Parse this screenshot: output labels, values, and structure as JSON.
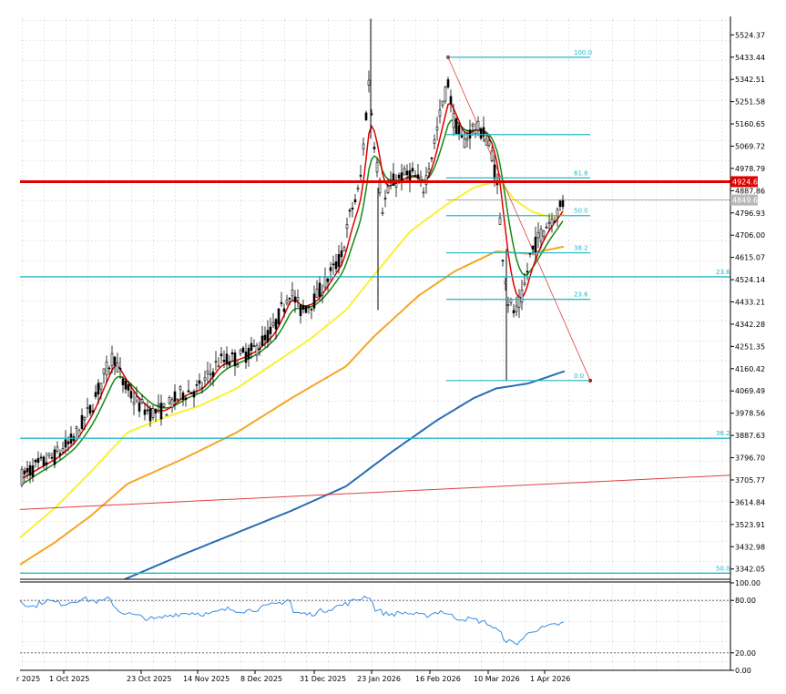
{
  "chart_data": {
    "type": "candlestick",
    "price_axis": {
      "ticks": [
        "5524.37",
        "5433.44",
        "5342.51",
        "5251.58",
        "5160.65",
        "5069.72",
        "4978.79",
        "4887.86",
        "4796.93",
        "4706.00",
        "4615.07",
        "4524.14",
        "4433.21",
        "4342.28",
        "4251.35",
        "4160.42",
        "4069.49",
        "3978.56",
        "3887.63",
        "3796.70",
        "3705.77",
        "3614.84",
        "3523.91",
        "3432.98",
        "3342.05"
      ],
      "range": [
        3300,
        5600
      ]
    },
    "date_axis": {
      "ticks": [
        "1 Oct 2025",
        "23 Oct 2025",
        "14 Nov 2025",
        "8 Dec 2025",
        "31 Dec 2025",
        "23 Jan 2026",
        "16 Feb 2026",
        "10 Mar 2026",
        "1 Apr 2026"
      ],
      "first_label_partial": "r 2025"
    },
    "price_tags": {
      "resistance": "4924.64",
      "current": "4849.61"
    },
    "resistance_level": 4924.64,
    "current_price": 4849.61,
    "fib_levels": [
      {
        "label": "100.0",
        "price": 5433
      },
      {
        "label": "61.8",
        "price": 4940
      },
      {
        "label": "50.0",
        "price": 4786
      },
      {
        "label": "38.2",
        "price": 4634
      },
      {
        "label": "23.6",
        "price": 4444
      },
      {
        "label": "0.0",
        "price": 4112
      }
    ],
    "fib_mid_line": 5117,
    "extended_fib": [
      {
        "label": "23.6",
        "price": 4536
      },
      {
        "label": "38.2",
        "price": 3876
      },
      {
        "label": "50.0",
        "price": 3325
      }
    ],
    "rsi_axis": {
      "ticks": [
        "100.00",
        "80.00",
        "20.00",
        "0.00"
      ],
      "levels": [
        80,
        20
      ],
      "range": [
        0,
        100
      ]
    },
    "colors": {
      "candle": "#000000",
      "ema_fast": "#e00000",
      "ema_mid": "#138a13",
      "ma_yellow": "#f7f233",
      "ma_orange": "#f5a623",
      "ma_blue": "#2a6db3",
      "trend_line": "#e04040",
      "fib": "#22b8c8",
      "resistance": "#e00000",
      "current_tag": "#b8b8b8",
      "rsi": "#3a8ee6"
    }
  }
}
